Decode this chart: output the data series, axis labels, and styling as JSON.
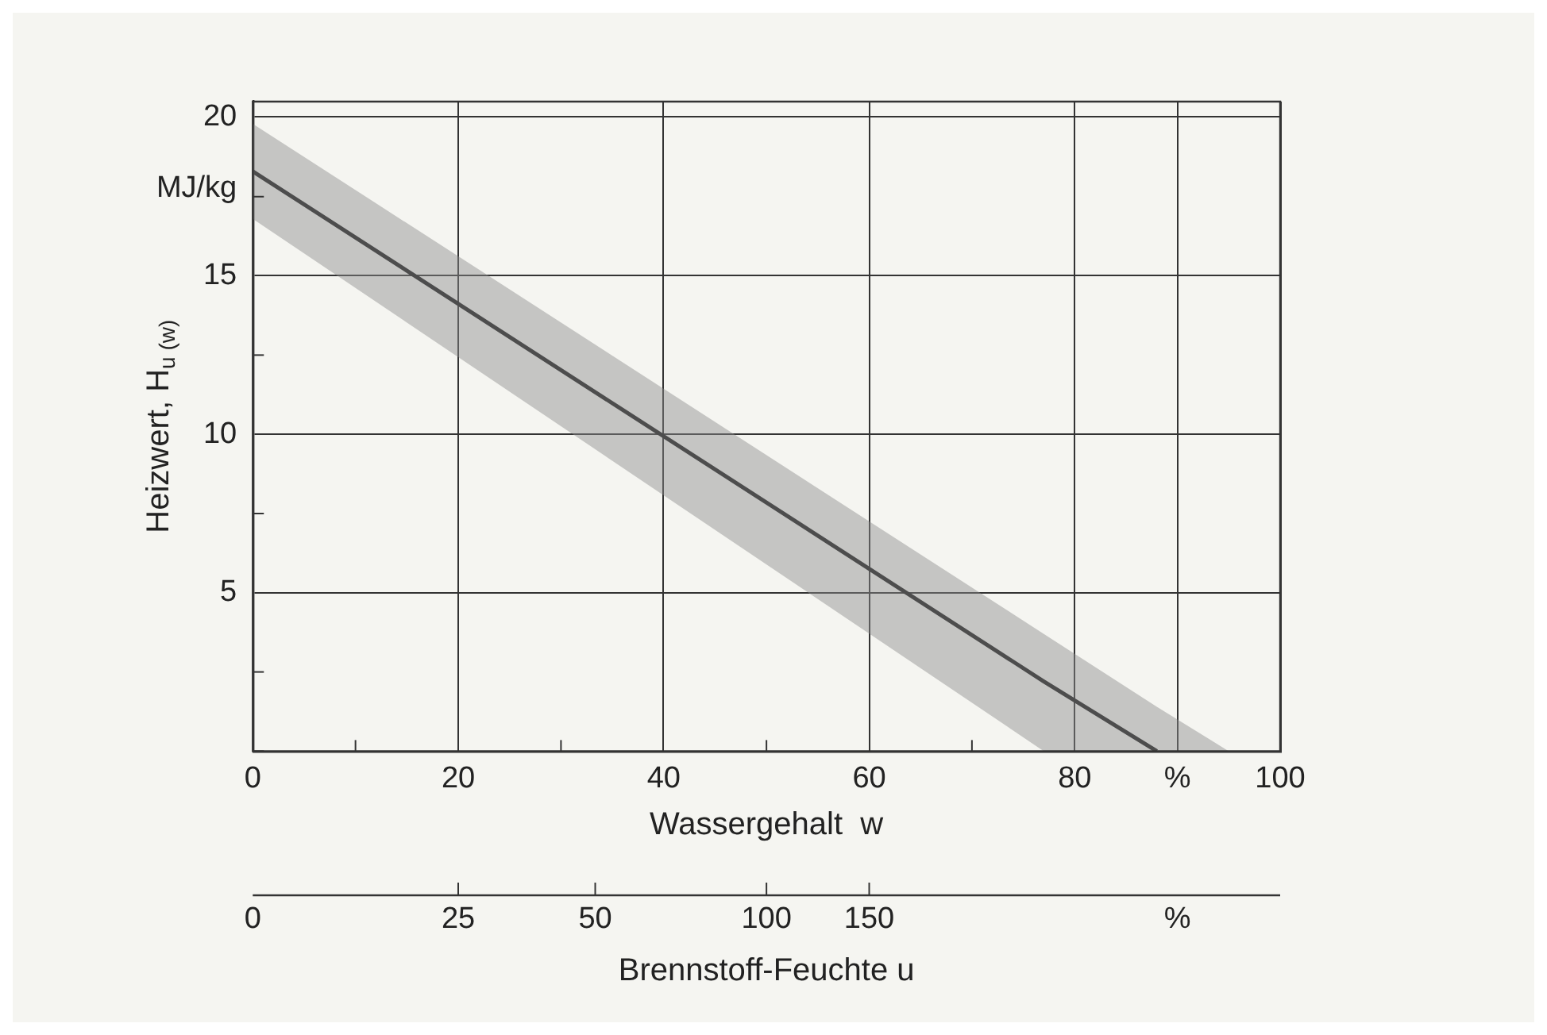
{
  "chart_data": {
    "type": "line",
    "xlabel": "Wassergehalt  w",
    "ylabel": "Heizwert, H$_{u (w)}$",
    "x2label": "Brennstoff-Feuchte u",
    "annotations": [
      "MJ/kg",
      "0",
      "25",
      "50",
      "100",
      "150",
      "%"
    ],
    "series": [
      {
        "color": "#1a1a1a",
        "x": [
          0,
          77,
          88,
          95
        ],
        "values": [
          18.3,
          2.2,
          0,
          null
        ],
        "lower": [
          16.8,
          0,
          0,
          0
        ],
        "upper": [
          19.8,
          3.7,
          1.4,
          0
        ]
      }
    ],
    "xlim": [
      0,
      100
    ],
    "xticks": [
      0,
      {
        "value": 10,
        "label": null
      },
      20,
      {
        "value": 30,
        "label": null
      },
      40,
      {
        "value": 50,
        "label": null
      },
      60,
      {
        "value": 70,
        "label": null
      },
      80,
      {
        "value": 90,
        "label": "%"
      },
      100
    ],
    "ylim": [
      0,
      20.5
    ],
    "yticks": [
      {
        "value": 0,
        "label": null
      },
      {
        "value": 2.5,
        "label": null
      },
      5,
      {
        "value": 7.5,
        "label": null
      },
      10,
      {
        "value": 12.5,
        "label": null
      },
      15,
      {
        "value": 17.5,
        "label": null
      },
      20
    ],
    "grid": true,
    "legend": false,
    "marker": "none",
    "line_style": "solid"
  }
}
